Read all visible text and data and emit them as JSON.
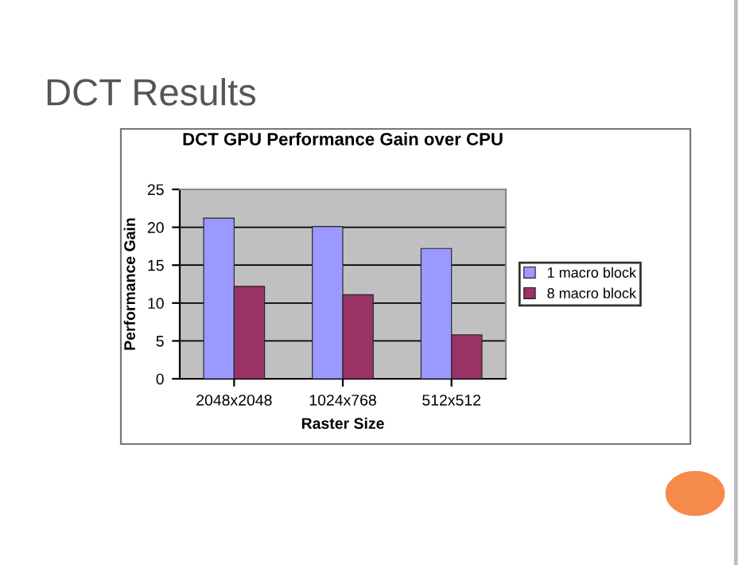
{
  "chart_data": {
    "type": "bar",
    "title": "DCT GPU Performance Gain over CPU",
    "xlabel": "Raster Size",
    "ylabel": "Performance Gain",
    "annotations": [
      "DCT Results"
    ],
    "categories": [
      "2048x2048",
      "1024x768",
      "512x512"
    ],
    "series": [
      {
        "name": "1 macro block",
        "color": "#9999ff",
        "values": [
          21.2,
          20.1,
          17.2
        ]
      },
      {
        "name": "8 macro block",
        "color": "#993366",
        "values": [
          12.2,
          11.1,
          5.8
        ]
      }
    ],
    "ylim": [
      0,
      25
    ],
    "yticks": [
      0,
      5,
      10,
      15,
      20,
      25
    ],
    "grid": "y",
    "legend": "right"
  }
}
